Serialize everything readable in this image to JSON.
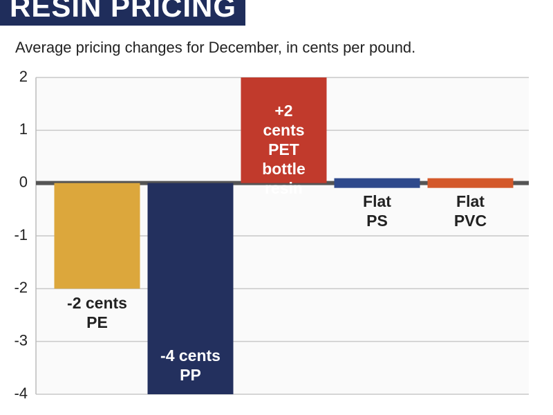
{
  "chart_data": {
    "type": "bar",
    "title": "RESIN PRICING",
    "subtitle": "Average pricing changes for December, in cents per pound.",
    "categories": [
      "PE",
      "PP",
      "PET bottle resin",
      "PS",
      "PVC"
    ],
    "values": [
      -2,
      -4,
      2,
      0,
      0
    ],
    "value_labels": [
      "-2 cents",
      "-4 cents",
      "+2 cents",
      "Flat",
      "Flat"
    ],
    "colors": [
      "#dca73c",
      "#23305e",
      "#c13a2c",
      "#2f4a8c",
      "#d4592b"
    ],
    "ylim": [
      -4,
      2
    ],
    "yticks": [
      -4,
      -3,
      -2,
      -1,
      0,
      1,
      2
    ],
    "grid": true
  }
}
